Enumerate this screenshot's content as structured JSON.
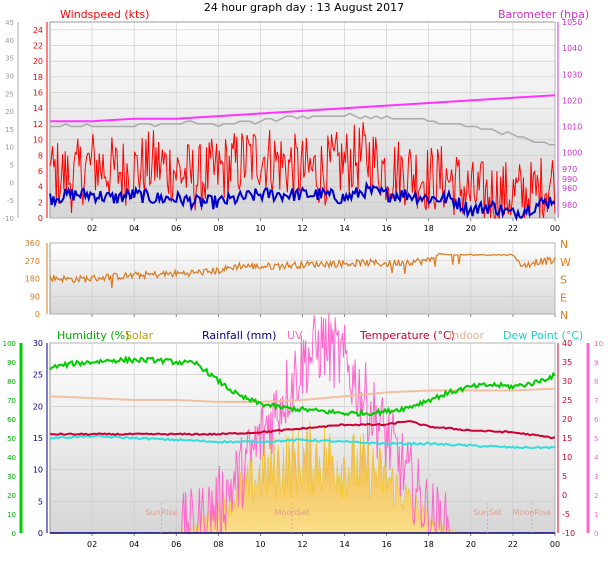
{
  "title": "24 hour graph day : 13 August 2017",
  "colors": {
    "windspeed": "#ff0000",
    "wind_avg": "#0000cc",
    "gust_gray": "#aaaaaa",
    "barometer": "#ff33ff",
    "direction": "#d97b1e",
    "humidity": "#00cc00",
    "solar": "#f0c000",
    "rainfall": "#000080",
    "uv": "#ff66cc",
    "temperature": "#cc0033",
    "indoor": "#f0c0a0",
    "dewpoint": "#33dddd",
    "plot_bg_top": "#ffffff",
    "plot_bg_bottom": "#d8d8d8"
  },
  "chart_data": [
    {
      "type": "line",
      "title": "24 hour graph day : 13 August 2017",
      "x_ticks": [
        "02",
        "04",
        "06",
        "08",
        "10",
        "12",
        "14",
        "16",
        "18",
        "20",
        "22",
        "00"
      ],
      "xlim_hours": [
        0,
        24
      ],
      "grid": true,
      "left_axis": {
        "label": "Windspeed (kts)",
        "ylim": [
          0,
          25
        ],
        "ticks": [
          "0",
          "2",
          "4",
          "6",
          "8",
          "10",
          "12",
          "14",
          "16",
          "18",
          "20",
          "22",
          "24"
        ]
      },
      "far_left_axis": {
        "ylim": [
          -10,
          45
        ],
        "ticks": [
          "-10",
          "-5",
          "0",
          "5",
          "10",
          "15",
          "20",
          "25",
          "30",
          "35",
          "40",
          "45"
        ]
      },
      "right_axis": {
        "label": "Barometer (hpa)",
        "ylim": [
          975,
          1050
        ],
        "ticks": [
          "980",
          "990",
          "1000",
          "1010",
          "1020",
          "1030",
          "1040",
          "1050"
        ]
      },
      "right_axis_extra_ticks": [
        "960",
        "970"
      ],
      "series": [
        {
          "hours": [
            0,
            1,
            2,
            3,
            4,
            5,
            6,
            7,
            8,
            9,
            10,
            11,
            12,
            13,
            14,
            15,
            16,
            17,
            18,
            19,
            20,
            21,
            22,
            23,
            24
          ],
          "values": [
            6,
            5,
            7,
            6,
            6,
            7,
            6,
            5,
            6,
            7,
            8,
            7,
            6,
            6,
            7,
            8,
            6,
            6,
            5,
            5,
            3,
            3,
            3,
            3,
            5
          ]
        },
        {
          "hours": [
            0,
            1,
            2,
            3,
            4,
            5,
            6,
            7,
            8,
            9,
            10,
            11,
            12,
            13,
            14,
            15,
            16,
            17,
            18,
            19,
            20,
            21,
            22,
            23,
            24
          ],
          "values": [
            2.5,
            3,
            3,
            2.5,
            3,
            2.5,
            2.5,
            2,
            2,
            2.5,
            3,
            3,
            3,
            3,
            2.5,
            3.5,
            3,
            3,
            2.5,
            2.5,
            1,
            1.5,
            0.5,
            1.5,
            2.5
          ]
        },
        {
          "hours": [
            0,
            2,
            4,
            6,
            8,
            10,
            12,
            14,
            16,
            17,
            18,
            20,
            22,
            23,
            24
          ],
          "values": [
            1010,
            1010,
            1010,
            1011,
            1011,
            1012,
            1014,
            1014,
            1014,
            1013,
            1012,
            1010,
            1007,
            1004,
            1003
          ]
        },
        {
          "name": "Barometer",
          "hours": [
            0,
            2,
            4,
            6,
            8,
            10,
            12,
            14,
            16,
            18,
            20,
            22,
            24
          ],
          "values": [
            1012,
            1012,
            1013,
            1013,
            1014,
            1015,
            1016,
            1017,
            1018,
            1019,
            1020,
            1021,
            1022
          ]
        }
      ]
    },
    {
      "type": "scatter",
      "right_labels": [
        "N",
        "W",
        "S",
        "E",
        "N"
      ],
      "xlim_hours": [
        0,
        24
      ],
      "ylim": [
        0,
        360
      ],
      "ticks": [
        "0",
        "90",
        "180",
        "270",
        "360"
      ],
      "grid": true,
      "series": [
        {
          "hours": [
            0,
            1,
            2,
            3,
            4,
            5,
            6,
            7,
            8,
            9,
            10,
            11,
            12,
            13,
            14,
            15,
            16,
            17,
            18,
            18.5,
            19,
            20,
            21,
            22,
            22.5,
            23,
            24
          ],
          "values": [
            185,
            175,
            180,
            190,
            195,
            200,
            205,
            210,
            220,
            245,
            240,
            245,
            250,
            255,
            255,
            260,
            255,
            265,
            270,
            305,
            300,
            300,
            300,
            300,
            240,
            265,
            270
          ]
        }
      ]
    },
    {
      "type": "line",
      "xlim_hours": [
        0,
        24
      ],
      "x_ticks": [
        "02",
        "04",
        "06",
        "08",
        "10",
        "12",
        "14",
        "16",
        "18",
        "20",
        "22",
        "00"
      ],
      "grid": true,
      "humidity_axis": {
        "ylim": [
          0,
          100
        ],
        "ticks": [
          "0",
          "10",
          "20",
          "30",
          "40",
          "50",
          "60",
          "70",
          "80",
          "90",
          "100"
        ]
      },
      "rain_axis": {
        "ylim": [
          0,
          30
        ],
        "ticks": [
          "0",
          "5",
          "10",
          "15",
          "20",
          "25",
          "30"
        ]
      },
      "temp_axis": {
        "ylim": [
          -10,
          40
        ],
        "ticks": [
          "-10",
          "-5",
          "0",
          "5",
          "10",
          "15",
          "20",
          "25",
          "30",
          "35",
          "40"
        ]
      },
      "uv_axis": {
        "ylim": [
          0,
          10
        ],
        "ticks": [
          "0",
          "1",
          "2",
          "3",
          "4",
          "5",
          "6",
          "7",
          "8",
          "9",
          "10"
        ]
      },
      "legend": [
        "Humidity (%)",
        "Solar",
        "Rainfall (mm)",
        "UV",
        "Temperature (°C)",
        "Indoor",
        "Dew Point (°C)"
      ],
      "annotations": [
        {
          "text": "SunRise",
          "hour": 5.3
        },
        {
          "text": "SunSet",
          "hour": 20.8
        },
        {
          "text": "MoonSet",
          "hour": 11.5
        },
        {
          "text": "MoonRise",
          "hour": 22.9
        }
      ],
      "series": [
        {
          "name": "Humidity (%)",
          "hours": [
            0,
            1,
            2,
            3,
            4,
            5,
            6,
            7,
            8,
            9,
            10,
            11,
            12,
            13,
            14,
            15,
            16,
            17,
            18,
            19,
            20,
            21,
            22,
            23,
            24
          ],
          "values": [
            87,
            89,
            90,
            91,
            91,
            91,
            90,
            89,
            80,
            72,
            68,
            66,
            65,
            64,
            63,
            63,
            64,
            66,
            70,
            74,
            77,
            78,
            77,
            79,
            83
          ]
        },
        {
          "name": "Temperature (°C)",
          "hours": [
            0,
            2,
            4,
            6,
            8,
            10,
            12,
            14,
            16,
            17,
            18,
            20,
            22,
            24
          ],
          "values": [
            16,
            16,
            16,
            16,
            16,
            16.5,
            17.5,
            18.5,
            18.5,
            19.5,
            18,
            17,
            16.5,
            15
          ]
        },
        {
          "name": "Indoor",
          "hours": [
            0,
            2,
            4,
            6,
            8,
            10,
            12,
            14,
            16,
            18,
            20,
            22,
            24
          ],
          "values": [
            26,
            25.5,
            25,
            25,
            24.5,
            24.5,
            25,
            26,
            27,
            27.5,
            27.5,
            27.5,
            28
          ]
        },
        {
          "name": "Dew Point (°C)",
          "hours": [
            0,
            2,
            4,
            6,
            8,
            10,
            12,
            14,
            16,
            18,
            20,
            22,
            24
          ],
          "values": [
            15,
            15.5,
            15,
            14.5,
            14,
            14,
            14.5,
            14,
            13.5,
            13.5,
            13,
            12.5,
            12.5
          ]
        },
        {
          "name": "Solar",
          "hours": [
            0,
            5,
            6,
            7,
            8,
            9,
            10,
            11,
            12,
            13,
            14,
            15,
            16,
            17,
            18,
            19,
            20,
            24
          ],
          "values": [
            0,
            0,
            1,
            5,
            18,
            30,
            42,
            50,
            53,
            55,
            50,
            48,
            40,
            25,
            10,
            2,
            0,
            0
          ]
        },
        {
          "name": "UV",
          "hours": [
            0,
            6,
            7,
            8,
            9,
            10,
            11,
            12,
            13,
            14,
            15,
            16,
            17,
            18,
            19,
            24
          ],
          "values": [
            0,
            0,
            0.5,
            1.5,
            3,
            5,
            7,
            9,
            10,
            9,
            7,
            5,
            3,
            1,
            0,
            0
          ]
        },
        {
          "name": "Rainfall (mm)",
          "hours": [
            0,
            24
          ],
          "values": [
            0,
            0
          ]
        }
      ]
    }
  ]
}
